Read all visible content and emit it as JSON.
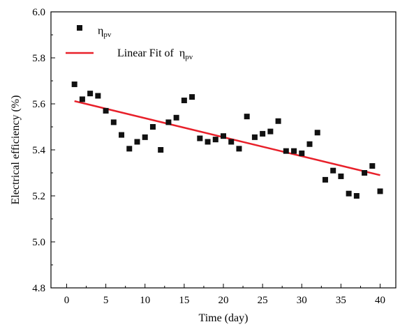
{
  "chart_data": {
    "type": "scatter",
    "xlabel": "Time (day)",
    "ylabel": "Electrical efficiency (%)",
    "xlim": [
      -2,
      42
    ],
    "ylim": [
      4.8,
      6.0
    ],
    "xticks": [
      "0",
      "5",
      "10",
      "15",
      "20",
      "25",
      "30",
      "35",
      "40"
    ],
    "yticks": [
      "4.8",
      "5.0",
      "5.2",
      "5.4",
      "5.6",
      "5.8",
      "6.0"
    ],
    "series": [
      {
        "name": "η",
        "name_sub": "pv",
        "kind": "scatter",
        "color": "#111111",
        "x": [
          1,
          2,
          3,
          4,
          5,
          6,
          7,
          8,
          9,
          10,
          11,
          12,
          13,
          14,
          15,
          16,
          17,
          18,
          19,
          20,
          21,
          22,
          23,
          24,
          25,
          26,
          27,
          28,
          29,
          30,
          31,
          32,
          33,
          34,
          35,
          36,
          37,
          38,
          39,
          40
        ],
        "y": [
          5.685,
          5.62,
          5.645,
          5.635,
          5.57,
          5.52,
          5.465,
          5.405,
          5.435,
          5.455,
          5.5,
          5.4,
          5.52,
          5.54,
          5.615,
          5.63,
          5.45,
          5.435,
          5.445,
          5.46,
          5.435,
          5.405,
          5.545,
          5.455,
          5.47,
          5.48,
          5.525,
          5.395,
          5.395,
          5.385,
          5.425,
          5.475,
          5.27,
          5.31,
          5.285,
          5.21,
          5.2,
          5.3,
          5.33,
          5.22
        ]
      },
      {
        "name": "Linear Fit of  η",
        "name_sub": "pv",
        "kind": "line",
        "color": "#e8202a",
        "x": [
          1,
          40
        ],
        "y": [
          5.612,
          5.29
        ]
      }
    ],
    "legend_position": "top-left",
    "grid": false
  }
}
